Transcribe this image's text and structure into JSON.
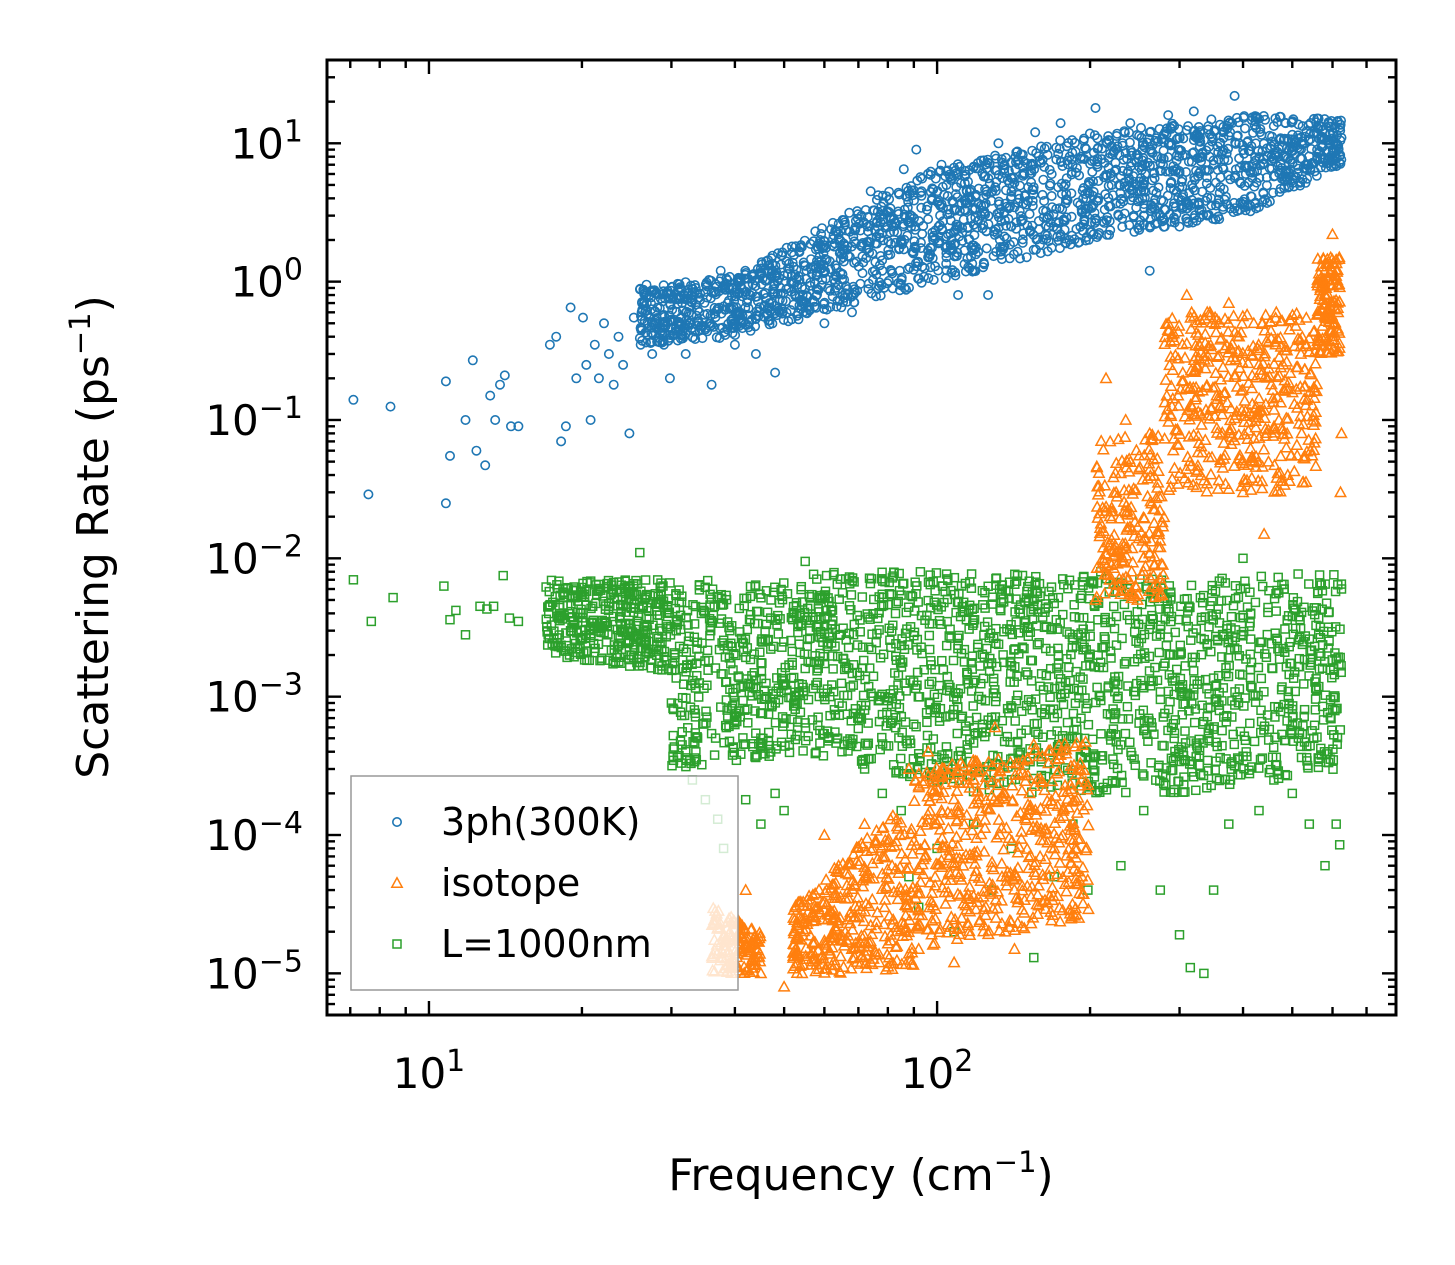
{
  "chart_data": {
    "type": "scatter",
    "title": "",
    "xlabel": "Frequency (cm",
    "xlabel_sup": "−1",
    "xlabel_end": ")",
    "ylabel": "Scattering Rate (ps",
    "ylabel_sup": "−1",
    "ylabel_end": ")",
    "xscale": "log",
    "yscale": "log",
    "xlim": [
      6.3,
      800
    ],
    "ylim": [
      5e-06,
      40
    ],
    "x_ticks": [
      {
        "value": 10,
        "base": "10",
        "exp": "1"
      },
      {
        "value": 100,
        "base": "10",
        "exp": "2"
      }
    ],
    "y_ticks": [
      {
        "value": 1e-05,
        "base": "10",
        "exp": "−5"
      },
      {
        "value": 0.0001,
        "base": "10",
        "exp": "−4"
      },
      {
        "value": 0.001,
        "base": "10",
        "exp": "−3"
      },
      {
        "value": 0.01,
        "base": "10",
        "exp": "−2"
      },
      {
        "value": 0.1,
        "base": "10",
        "exp": "−1"
      },
      {
        "value": 1,
        "base": "10",
        "exp": "0"
      },
      {
        "value": 10,
        "base": "10",
        "exp": "1"
      }
    ],
    "legend_position": "lower-left",
    "series": [
      {
        "name": "3ph(300K)",
        "marker": "circle",
        "color": "#1f77b4",
        "points": [
          [
            7.1,
            0.14
          ],
          [
            7.6,
            0.029
          ],
          [
            8.4,
            0.125
          ],
          [
            10.8,
            0.19
          ],
          [
            10.8,
            0.025
          ],
          [
            11.0,
            0.055
          ],
          [
            11.8,
            0.1
          ],
          [
            12.2,
            0.27
          ],
          [
            12.4,
            0.06
          ],
          [
            12.9,
            0.047
          ],
          [
            13.2,
            0.15
          ],
          [
            13.5,
            0.1
          ],
          [
            13.8,
            0.18
          ],
          [
            14.1,
            0.21
          ],
          [
            14.5,
            0.09
          ],
          [
            15.0,
            0.09
          ],
          [
            17.3,
            0.35
          ],
          [
            17.8,
            0.4
          ],
          [
            18.2,
            0.07
          ],
          [
            18.6,
            0.09
          ],
          [
            19.0,
            0.65
          ],
          [
            19.5,
            0.2
          ],
          [
            20.1,
            0.55
          ],
          [
            20.4,
            0.25
          ],
          [
            20.8,
            0.1
          ],
          [
            21.2,
            0.35
          ],
          [
            21.6,
            0.2
          ],
          [
            22.1,
            0.5
          ],
          [
            22.6,
            0.3
          ],
          [
            23.1,
            0.18
          ],
          [
            23.6,
            0.4
          ],
          [
            24.1,
            0.25
          ],
          [
            24.8,
            0.08
          ],
          [
            25.3,
            0.55
          ],
          [
            26.1,
            0.35
          ],
          [
            26.8,
            0.95
          ],
          [
            27.5,
            0.3
          ],
          [
            28.2,
            0.45
          ],
          [
            29.0,
            0.35
          ],
          [
            29.8,
            0.2
          ],
          [
            31.0,
            0.75
          ],
          [
            32.0,
            0.3
          ],
          [
            33.5,
            0.9
          ],
          [
            35.0,
            0.45
          ],
          [
            36.0,
            0.18
          ],
          [
            37.5,
            1.2
          ],
          [
            40.0,
            0.35
          ],
          [
            42.0,
            0.8
          ],
          [
            44.0,
            0.3
          ],
          [
            46.5,
            1.3
          ],
          [
            48.0,
            0.22
          ],
          [
            51.0,
            0.9
          ],
          [
            55.0,
            1.3
          ],
          [
            58.0,
            1.8
          ],
          [
            60.0,
            0.5
          ],
          [
            64.0,
            2.2
          ],
          [
            68.0,
            0.6
          ],
          [
            71.0,
            3.0
          ],
          [
            74.0,
            4.5
          ],
          [
            78.0,
            1.2
          ],
          [
            82.0,
            2.5
          ],
          [
            86.0,
            6.5
          ],
          [
            91.0,
            9.0
          ],
          [
            96.0,
            1.5
          ],
          [
            102.0,
            7.0
          ],
          [
            110.0,
            0.8
          ],
          [
            116.0,
            4.5
          ],
          [
            122.0,
            7.5
          ],
          [
            126.0,
            0.8
          ],
          [
            132.0,
            10.0
          ],
          [
            140.0,
            2.5
          ],
          [
            148.0,
            6.0
          ],
          [
            156.0,
            12.0
          ],
          [
            166.0,
            3.0
          ],
          [
            175.0,
            14.0
          ],
          [
            182.0,
            2.0
          ],
          [
            192.0,
            8.0
          ],
          [
            205.0,
            18.0
          ],
          [
            216.0,
            10.0
          ],
          [
            228.0,
            5.0
          ],
          [
            240.0,
            14.0
          ],
          [
            255.0,
            3.0
          ],
          [
            262.0,
            1.2
          ],
          [
            272.0,
            8.0
          ],
          [
            285.0,
            16.0
          ],
          [
            300.0,
            2.5
          ],
          [
            320.0,
            17.0
          ],
          [
            340.0,
            3.0
          ],
          [
            360.0,
            10.0
          ],
          [
            385.0,
            22.0
          ],
          [
            405.0,
            6.0
          ],
          [
            430.0,
            15.0
          ],
          [
            455.0,
            8.0
          ],
          [
            485.0,
            14.0
          ],
          [
            520.0,
            11.0
          ],
          [
            560.0,
            13.0
          ],
          [
            600.0,
            12.0
          ],
          [
            625.0,
            11.0
          ]
        ],
        "bands": [
          {
            "x0": 26,
            "x1": 40,
            "ylo0": 0.35,
            "yhi0": 0.9,
            "ylo1": 0.4,
            "yhi1": 1.1
          },
          {
            "x0": 40,
            "x1": 90,
            "ylo0": 0.4,
            "yhi0": 1.1,
            "ylo1": 0.9,
            "yhi1": 6
          },
          {
            "x0": 90,
            "x1": 200,
            "ylo0": 0.9,
            "yhi0": 6,
            "ylo1": 2,
            "yhi1": 12
          },
          {
            "x0": 200,
            "x1": 400,
            "ylo0": 2,
            "yhi0": 12,
            "ylo1": 3,
            "yhi1": 16
          },
          {
            "x0": 400,
            "x1": 625,
            "ylo0": 3,
            "yhi0": 16,
            "ylo1": 7,
            "yhi1": 15
          }
        ]
      },
      {
        "name": "isotope",
        "marker": "triangle",
        "color": "#ff7f0e",
        "points": [
          [
            40.0,
            1.2e-05
          ],
          [
            42.0,
            4e-05
          ],
          [
            45.0,
            1e-05
          ],
          [
            50.0,
            8e-06
          ],
          [
            55.0,
            2.5e-05
          ],
          [
            60.0,
            0.0001
          ],
          [
            64.0,
            6e-05
          ],
          [
            68.0,
            1.5e-05
          ],
          [
            72.0,
            0.00012
          ],
          [
            78.0,
            7e-05
          ],
          [
            83.0,
            9e-05
          ],
          [
            88.0,
            0.0003
          ],
          [
            92.0,
            1.5e-05
          ],
          [
            96.0,
            0.0004
          ],
          [
            102.0,
            0.00015
          ],
          [
            108.0,
            1.2e-05
          ],
          [
            118.0,
            0.00025
          ],
          [
            130.0,
            0.0006
          ],
          [
            142.0,
            1.5e-05
          ],
          [
            155.0,
            0.00045
          ],
          [
            170.0,
            8e-05
          ],
          [
            185.0,
            0.0003
          ],
          [
            205.0,
            0.005
          ],
          [
            215.0,
            0.2
          ],
          [
            225.0,
            0.03
          ],
          [
            235.0,
            0.1
          ],
          [
            248.0,
            0.005
          ],
          [
            262.0,
            0.08
          ],
          [
            275.0,
            0.012
          ],
          [
            285.0,
            0.5
          ],
          [
            298.0,
            0.15
          ],
          [
            310.0,
            0.8
          ],
          [
            325.0,
            0.25
          ],
          [
            340.0,
            0.6
          ],
          [
            355.0,
            0.15
          ],
          [
            375.0,
            0.7
          ],
          [
            400.0,
            0.03
          ],
          [
            420.0,
            0.5
          ],
          [
            440.0,
            0.015
          ],
          [
            465.0,
            0.6
          ],
          [
            490.0,
            0.04
          ],
          [
            520.0,
            0.3
          ],
          [
            550.0,
            0.1
          ],
          [
            580.0,
            1.2
          ],
          [
            600.0,
            2.2
          ],
          [
            615.0,
            0.6
          ],
          [
            625.0,
            0.08
          ],
          [
            622.0,
            0.03
          ]
        ],
        "bands": [
          {
            "x0": 36,
            "x1": 45,
            "ylo0": 1e-05,
            "yhi0": 3e-05,
            "ylo1": 1e-05,
            "yhi1": 2e-05
          },
          {
            "x0": 52,
            "x1": 90,
            "ylo0": 1e-05,
            "yhi0": 3e-05,
            "ylo1": 1e-05,
            "yhi1": 0.0002
          },
          {
            "x0": 90,
            "x1": 200,
            "ylo0": 1.5e-05,
            "yhi0": 0.0003,
            "ylo1": 2.5e-05,
            "yhi1": 0.0005
          },
          {
            "x0": 205,
            "x1": 280,
            "ylo0": 0.005,
            "yhi0": 0.08,
            "ylo1": 0.005,
            "yhi1": 0.08
          },
          {
            "x0": 280,
            "x1": 560,
            "ylo0": 0.03,
            "yhi0": 0.6,
            "ylo1": 0.03,
            "yhi1": 0.6
          },
          {
            "x0": 560,
            "x1": 620,
            "ylo0": 0.3,
            "yhi0": 1.5,
            "ylo1": 0.3,
            "yhi1": 1.5
          }
        ]
      },
      {
        "name": "L=1000nm",
        "marker": "square",
        "color": "#2ca02c",
        "points": [
          [
            7.1,
            0.007
          ],
          [
            7.7,
            0.0035
          ],
          [
            8.5,
            0.0052
          ],
          [
            10.7,
            0.0063
          ],
          [
            11.0,
            0.0036
          ],
          [
            11.3,
            0.0042
          ],
          [
            11.8,
            0.0028
          ],
          [
            12.6,
            0.0045
          ],
          [
            13.0,
            0.0043
          ],
          [
            13.4,
            0.0045
          ],
          [
            14.0,
            0.0075
          ],
          [
            14.4,
            0.0037
          ],
          [
            15.0,
            0.0035
          ],
          [
            17.0,
            0.0062
          ],
          [
            18.0,
            0.0037
          ],
          [
            19.0,
            0.003
          ],
          [
            19.5,
            0.006
          ],
          [
            21.0,
            0.0045
          ],
          [
            22.5,
            0.0028
          ],
          [
            24.0,
            0.005
          ],
          [
            26.0,
            0.011
          ],
          [
            28.0,
            0.0022
          ],
          [
            30.0,
            0.0009
          ],
          [
            32.0,
            0.0004
          ],
          [
            33.0,
            0.00025
          ],
          [
            35.0,
            0.00018
          ],
          [
            37.0,
            0.00013
          ],
          [
            38.0,
            8e-05
          ],
          [
            40.0,
            0.0009
          ],
          [
            42.0,
            0.00018
          ],
          [
            45.0,
            0.00012
          ],
          [
            48.0,
            0.0002
          ],
          [
            50.0,
            0.00015
          ],
          [
            55.0,
            0.0095
          ],
          [
            60.0,
            0.001
          ],
          [
            65.0,
            0.0004
          ],
          [
            72.0,
            0.0003
          ],
          [
            78.0,
            0.0002
          ],
          [
            85.0,
            0.00015
          ],
          [
            88.0,
            5e-05
          ],
          [
            92.0,
            3e-05
          ],
          [
            100.0,
            8e-05
          ],
          [
            108.0,
            2e-05
          ],
          [
            118.0,
            0.00012
          ],
          [
            128.0,
            4e-05
          ],
          [
            140.0,
            8e-05
          ],
          [
            155.0,
            1.3e-05
          ],
          [
            170.0,
            5e-05
          ],
          [
            185.0,
            0.00012
          ],
          [
            198.0,
            4e-05
          ],
          [
            210.0,
            0.008
          ],
          [
            230.0,
            6e-05
          ],
          [
            255.0,
            0.00015
          ],
          [
            275.0,
            4e-05
          ],
          [
            300.0,
            1.9e-05
          ],
          [
            315.0,
            1.1e-05
          ],
          [
            335.0,
            1e-05
          ],
          [
            350.0,
            4e-05
          ],
          [
            375.0,
            0.00012
          ],
          [
            400.0,
            0.01
          ],
          [
            430.0,
            0.00015
          ],
          [
            460.0,
            0.00025
          ],
          [
            500.0,
            0.0002
          ],
          [
            540.0,
            0.00012
          ],
          [
            580.0,
            6e-05
          ],
          [
            610.0,
            0.00012
          ],
          [
            620.0,
            8.5e-05
          ],
          [
            625.0,
            0.006
          ]
        ],
        "bands": [
          {
            "x0": 17,
            "x1": 30,
            "ylo0": 0.002,
            "yhi0": 0.007,
            "ylo1": 0.0015,
            "yhi1": 0.007
          },
          {
            "x0": 30,
            "x1": 55,
            "ylo0": 0.0003,
            "yhi0": 0.007,
            "ylo1": 0.0004,
            "yhi1": 0.007
          },
          {
            "x0": 55,
            "x1": 120,
            "ylo0": 0.0004,
            "yhi0": 0.008,
            "ylo1": 0.0002,
            "yhi1": 0.008
          },
          {
            "x0": 120,
            "x1": 300,
            "ylo0": 0.0002,
            "yhi0": 0.008,
            "ylo1": 0.0002,
            "yhi1": 0.007
          },
          {
            "x0": 300,
            "x1": 625,
            "ylo0": 0.0002,
            "yhi0": 0.007,
            "ylo1": 0.0003,
            "yhi1": 0.008
          }
        ]
      }
    ]
  }
}
